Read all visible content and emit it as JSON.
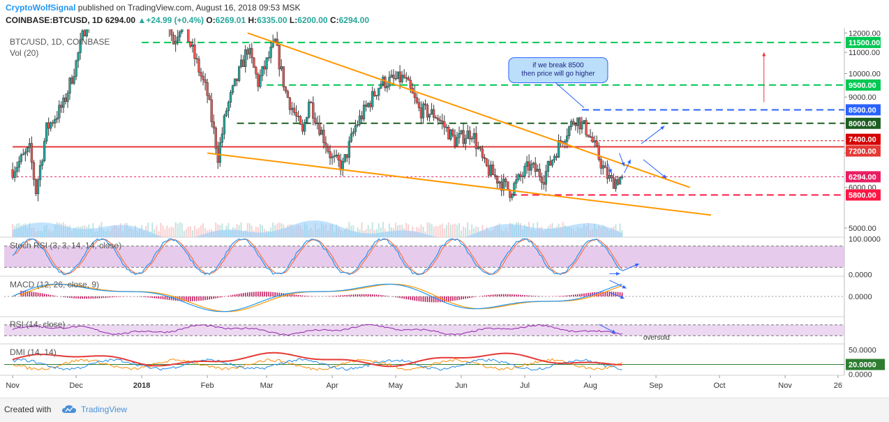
{
  "header": {
    "author": "CryptoWolfSignal",
    "published_text": "published on TradingView.com, August 16, 2018 09:53 MSK",
    "symbol": "COINBASE:BTCUSD, 1D",
    "last": "6294.00",
    "change_arrow": "▲",
    "change": "+24.99 (+0.4%)",
    "o_label": "O:",
    "o_value": "6269.01",
    "h_label": "H:",
    "h_value": "6335.00",
    "l_label": "L:",
    "l_value": "6200.00",
    "c_label": "C:",
    "c_value": "6294.00"
  },
  "footer": {
    "created_with": "Created with",
    "brand": "TradingView",
    "logo_icon": "tradingview-cloud-icon",
    "brand_color": "#4a90d9"
  },
  "chart_data": {
    "type": "candlestick",
    "title": "BTC/USD, 1D, COINBASE",
    "volume_label": "Vol (20)",
    "x_ticks": [
      "Nov",
      "Dec",
      "2018",
      "Feb",
      "Mar",
      "Apr",
      "May",
      "Jun",
      "Jul",
      "Aug",
      "Sep",
      "Oct",
      "Nov",
      "26"
    ],
    "price_axis": {
      "scale": "log",
      "ylim": [
        4800,
        12200
      ],
      "ticks": [
        12000,
        11000,
        10000,
        9000,
        8000,
        7000,
        6000,
        5000
      ],
      "tick_labels": [
        "12000.00",
        "11000.00",
        "10000.00",
        "9000.00",
        "8000.00",
        "7000.00",
        "6000.00",
        "5000.00"
      ]
    },
    "price_anchors": [
      {
        "date": "2017-11-01",
        "close": 6500
      },
      {
        "date": "2017-11-09",
        "close": 7100
      },
      {
        "date": "2017-11-12",
        "close": 5900
      },
      {
        "date": "2017-11-17",
        "close": 7800
      },
      {
        "date": "2017-11-25",
        "close": 8700
      },
      {
        "date": "2017-12-01",
        "close": 10500
      },
      {
        "date": "2017-12-17",
        "close": 19500
      },
      {
        "date": "2017-12-22",
        "close": 14000
      },
      {
        "date": "2018-01-06",
        "close": 17000
      },
      {
        "date": "2018-01-16",
        "close": 11500
      },
      {
        "date": "2018-01-20",
        "close": 12700
      },
      {
        "date": "2018-02-01",
        "close": 9100
      },
      {
        "date": "2018-02-06",
        "close": 6900
      },
      {
        "date": "2018-02-10",
        "close": 8500
      },
      {
        "date": "2018-02-20",
        "close": 11200
      },
      {
        "date": "2018-02-25",
        "close": 9600
      },
      {
        "date": "2018-03-05",
        "close": 11500
      },
      {
        "date": "2018-03-10",
        "close": 9200
      },
      {
        "date": "2018-03-15",
        "close": 8200
      },
      {
        "date": "2018-03-18",
        "close": 7600
      },
      {
        "date": "2018-03-21",
        "close": 8900
      },
      {
        "date": "2018-04-01",
        "close": 6800
      },
      {
        "date": "2018-04-06",
        "close": 6600
      },
      {
        "date": "2018-04-12",
        "close": 7900
      },
      {
        "date": "2018-04-24",
        "close": 9600
      },
      {
        "date": "2018-05-05",
        "close": 9800
      },
      {
        "date": "2018-05-12",
        "close": 8500
      },
      {
        "date": "2018-05-20",
        "close": 8300
      },
      {
        "date": "2018-05-29",
        "close": 7400
      },
      {
        "date": "2018-06-06",
        "close": 7700
      },
      {
        "date": "2018-06-12",
        "close": 6600
      },
      {
        "date": "2018-06-24",
        "close": 5900
      },
      {
        "date": "2018-07-03",
        "close": 6600
      },
      {
        "date": "2018-07-10",
        "close": 6300
      },
      {
        "date": "2018-07-18",
        "close": 7400
      },
      {
        "date": "2018-07-25",
        "close": 8200
      },
      {
        "date": "2018-07-31",
        "close": 7700
      },
      {
        "date": "2018-08-08",
        "close": 6400
      },
      {
        "date": "2018-08-11",
        "close": 6150
      },
      {
        "date": "2018-08-16",
        "close": 6294
      }
    ],
    "horizontal_levels": [
      {
        "value": 11500,
        "label": "11500.00",
        "color": "#00c853",
        "style": "dashed",
        "start_date": "2018-01-01"
      },
      {
        "value": 9500,
        "label": "9500.00",
        "color": "#00c853",
        "style": "dashed",
        "start_date": "2018-03-01"
      },
      {
        "value": 8500,
        "label": "8500.00",
        "color": "#2962ff",
        "style": "dashed",
        "start_date": "2018-07-28"
      },
      {
        "value": 8000,
        "label": "8000.00",
        "color": "#1b5e20",
        "style": "dashed",
        "start_date": "2018-02-15"
      },
      {
        "value": 7400,
        "label": "7400.00",
        "color": "#d50000",
        "style": "dotted",
        "start_date": "2018-08-01"
      },
      {
        "value": 7200,
        "label": "7200.00",
        "color": "#e53935",
        "style": "solid",
        "start_date": "2017-11-01"
      },
      {
        "value": 6294,
        "label": "6294.00",
        "color": "#e91e63",
        "style": "dotted",
        "start_date": "2017-11-01"
      },
      {
        "value": 5800,
        "label": "5800.00",
        "color": "#ff1744",
        "style": "dashed",
        "start_date": "2018-06-24"
      }
    ],
    "trendlines": [
      {
        "color": "#ff9800",
        "from": {
          "date": "2018-02-20",
          "value": 12000
        },
        "to": {
          "date": "2018-09-17",
          "value": 6000
        }
      },
      {
        "color": "#ff9800",
        "from": {
          "date": "2018-02-01",
          "value": 7000
        },
        "to": {
          "date": "2018-09-27",
          "value": 5300
        }
      }
    ],
    "annotation": {
      "text_lines": [
        "if we break 8500",
        "then price will go higher"
      ],
      "color": "#2962ff",
      "fill": "#bbdefb",
      "date": "2018-07-28",
      "value": 9600
    },
    "up_arrow": {
      "date": "2018-10-22",
      "from": 8800,
      "to": 11000,
      "color": "#e53935"
    },
    "indicators": [
      {
        "name": "Stoch RSI (3, 3, 14, 14, close)",
        "ylim": [
          -5,
          105
        ],
        "ticks": [
          100,
          0
        ],
        "tick_labels": [
          "100.0000",
          "0.0000"
        ],
        "band": [
          20,
          80
        ]
      },
      {
        "name": "MACD (12, 26, close, 9)",
        "ylim": [
          -4,
          4
        ],
        "ticks": [
          0
        ],
        "tick_labels": [
          "0.0000"
        ]
      },
      {
        "name": "RSI (14, close)",
        "ylim": [
          0,
          100
        ],
        "band": [
          30,
          70
        ],
        "note": "oversold"
      },
      {
        "name": "DMI (14, 14)",
        "ylim": [
          -2,
          62
        ],
        "ticks": [
          50,
          20,
          0
        ],
        "tick_labels": [
          "50.0000",
          "20.0000",
          "0.0000"
        ],
        "highlight_tick": 20
      }
    ],
    "colors": {
      "up": "#26a69a",
      "down": "#ef5350",
      "volume": "#90caf9",
      "stoch_k": "#2196f3",
      "stoch_d": "#ff7043",
      "stoch_band": "#e1bee7",
      "macd_line": "#2196f3",
      "signal_line": "#ff9800",
      "histogram": "#c2185b",
      "rsi_line": "#8e24aa",
      "adx": "#e53935",
      "di_plus": "#1e88e5",
      "di_minus": "#fb8c00"
    }
  }
}
